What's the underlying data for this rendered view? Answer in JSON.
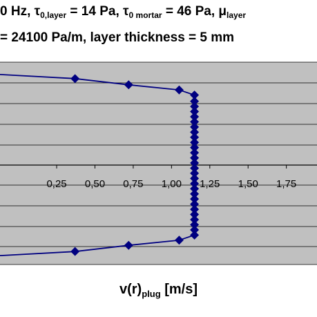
{
  "title": {
    "line1": {
      "a": "0 Hz, ",
      "tau_sym1": "τ",
      "tau_sub1": "0,layer",
      "b": " = 14 Pa, ",
      "tau_sym2": "τ",
      "tau_sub2": "0 mortar",
      "c": " = 46 Pa, ",
      "mu_sym": "μ",
      "mu_sub": "layer"
    },
    "line2": "= 24100 Pa/m,  layer thickness = 5 mm"
  },
  "xlabel": {
    "main": "v(r)",
    "sub": "plug",
    "unit": " [m/s]"
  },
  "chart_data": {
    "type": "line",
    "title": "",
    "xlabel": "v(r) plug [m/s]",
    "ylabel": "",
    "xlim": [
      -0.12,
      1.95
    ],
    "ylim": [
      -1,
      1
    ],
    "x_ticks": [
      "0,25",
      "0,50",
      "0,75",
      "1,00",
      "1,25",
      "1,50",
      "1,75"
    ],
    "x_tick_values": [
      0.25,
      0.5,
      0.75,
      1.0,
      1.25,
      1.5,
      1.75
    ],
    "y_gridlines": 10,
    "grid": true,
    "series": [
      {
        "name": "",
        "color": "#000080",
        "points": [
          [
            -0.12,
            0.88
          ],
          [
            0.37,
            0.84
          ],
          [
            0.72,
            0.78
          ],
          [
            1.05,
            0.73
          ],
          [
            1.15,
            0.68
          ],
          [
            1.15,
            0.62
          ],
          [
            1.15,
            0.57
          ],
          [
            1.15,
            0.52
          ],
          [
            1.15,
            0.47
          ],
          [
            1.15,
            0.42
          ],
          [
            1.15,
            0.37
          ],
          [
            1.15,
            0.32
          ],
          [
            1.15,
            0.27
          ],
          [
            1.15,
            0.22
          ],
          [
            1.15,
            0.17
          ],
          [
            1.15,
            0.12
          ],
          [
            1.15,
            0.07
          ],
          [
            1.15,
            0.02
          ],
          [
            1.15,
            -0.03
          ],
          [
            1.15,
            -0.08
          ],
          [
            1.15,
            -0.13
          ],
          [
            1.15,
            -0.18
          ],
          [
            1.15,
            -0.23
          ],
          [
            1.15,
            -0.28
          ],
          [
            1.15,
            -0.33
          ],
          [
            1.15,
            -0.38
          ],
          [
            1.15,
            -0.43
          ],
          [
            1.15,
            -0.48
          ],
          [
            1.15,
            -0.53
          ],
          [
            1.15,
            -0.58
          ],
          [
            1.15,
            -0.63
          ],
          [
            1.15,
            -0.68
          ],
          [
            1.05,
            -0.73
          ],
          [
            0.72,
            -0.78
          ],
          [
            0.37,
            -0.84
          ],
          [
            -0.12,
            -0.88
          ]
        ],
        "markers": [
          [
            0.37,
            0.84
          ],
          [
            0.72,
            0.78
          ],
          [
            1.05,
            0.73
          ],
          [
            1.15,
            0.68
          ],
          [
            1.15,
            0.62
          ],
          [
            1.15,
            0.57
          ],
          [
            1.15,
            0.52
          ],
          [
            1.15,
            0.47
          ],
          [
            1.15,
            0.42
          ],
          [
            1.15,
            0.37
          ],
          [
            1.15,
            0.32
          ],
          [
            1.15,
            0.27
          ],
          [
            1.15,
            0.22
          ],
          [
            1.15,
            0.17
          ],
          [
            1.15,
            0.12
          ],
          [
            1.15,
            0.07
          ],
          [
            1.15,
            0.02
          ],
          [
            1.15,
            -0.03
          ],
          [
            1.15,
            -0.08
          ],
          [
            1.15,
            -0.13
          ],
          [
            1.15,
            -0.18
          ],
          [
            1.15,
            -0.23
          ],
          [
            1.15,
            -0.28
          ],
          [
            1.15,
            -0.33
          ],
          [
            1.15,
            -0.38
          ],
          [
            1.15,
            -0.43
          ],
          [
            1.15,
            -0.48
          ],
          [
            1.15,
            -0.53
          ],
          [
            1.15,
            -0.58
          ],
          [
            1.15,
            -0.63
          ],
          [
            1.15,
            -0.68
          ],
          [
            1.05,
            -0.73
          ],
          [
            0.72,
            -0.78
          ],
          [
            0.37,
            -0.84
          ]
        ]
      }
    ]
  }
}
